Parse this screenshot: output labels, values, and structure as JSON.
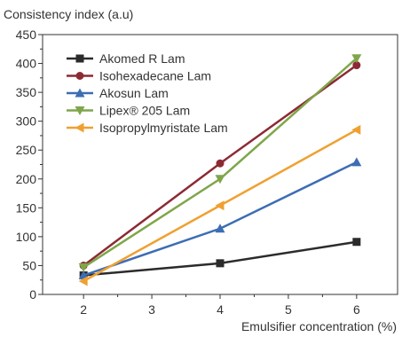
{
  "chart_data": {
    "type": "line",
    "title": "",
    "ylabel": "Consistency index (a.u)",
    "xlabel": "Emulsifier concentration (%)",
    "xlim": [
      1.4,
      6.6
    ],
    "ylim": [
      0,
      450
    ],
    "xticks": [
      "2",
      "3",
      "4",
      "5",
      "6"
    ],
    "yticks": [
      "0",
      "50",
      "100",
      "150",
      "200",
      "250",
      "300",
      "350",
      "400",
      "450"
    ],
    "grid": false,
    "legend_position": "top-left",
    "series": [
      {
        "name": "Akomed R Lam",
        "color": "#2b2b2b",
        "marker": "square",
        "x": [
          2,
          4,
          6
        ],
        "y": [
          33,
          54,
          91
        ]
      },
      {
        "name": "Isohexadecane Lam",
        "color": "#8c2a34",
        "marker": "circle",
        "x": [
          2,
          4,
          6
        ],
        "y": [
          50,
          227,
          397
        ]
      },
      {
        "name": "Akosun Lam",
        "color": "#3d6db4",
        "marker": "triangle-up",
        "x": [
          2,
          4,
          6
        ],
        "y": [
          33,
          114,
          229
        ]
      },
      {
        "name": "Lipex® 205 Lam",
        "color": "#7fa64a",
        "marker": "triangle-down",
        "x": [
          2,
          4,
          6
        ],
        "y": [
          47,
          200,
          409
        ]
      },
      {
        "name": "Isopropylmyristate Lam",
        "color": "#f0a030",
        "marker": "triangle-left",
        "x": [
          2,
          4,
          6
        ],
        "y": [
          23,
          154,
          285
        ]
      }
    ]
  }
}
